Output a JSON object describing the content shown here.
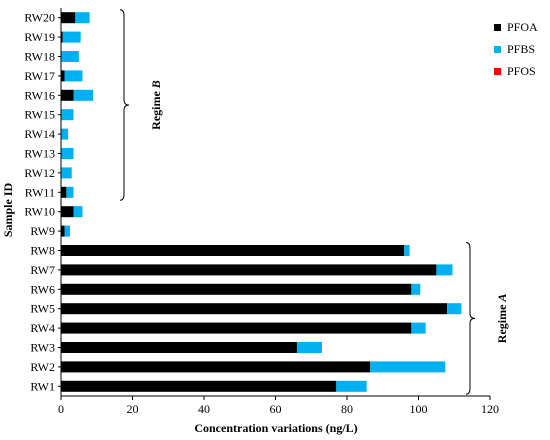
{
  "chart_data": {
    "type": "bar",
    "orientation": "horizontal",
    "stacked": true,
    "title": "",
    "xlabel": "Concentration variations (ng/L)",
    "ylabel": "Sample ID",
    "xlim": [
      0,
      120
    ],
    "x_ticks": [
      0,
      20,
      40,
      60,
      80,
      100,
      120
    ],
    "categories": [
      "RW1",
      "RW2",
      "RW3",
      "RW4",
      "RW5",
      "RW6",
      "RW7",
      "RW8",
      "RW9",
      "RW10",
      "RW11",
      "RW12",
      "RW13",
      "RW14",
      "RW15",
      "RW16",
      "RW17",
      "RW18",
      "RW19",
      "RW20"
    ],
    "series": [
      {
        "name": "PFOA",
        "color": "#000000",
        "values": [
          77,
          86.5,
          66,
          98,
          108,
          98,
          105,
          96,
          1,
          3.5,
          1.5,
          0,
          0,
          0,
          0,
          3.5,
          1,
          0,
          0.5,
          4
        ]
      },
      {
        "name": "PFBS",
        "color": "#00b0f0",
        "values": [
          8.5,
          21,
          7,
          4,
          4,
          2.5,
          4.5,
          1.5,
          1.5,
          2.5,
          2,
          3,
          3.5,
          2,
          3.5,
          5.5,
          5,
          5,
          5,
          4
        ]
      },
      {
        "name": "PFOS",
        "color": "#ff0000",
        "values": [
          0,
          0,
          0,
          0,
          0,
          0,
          0,
          0,
          0,
          0,
          0,
          0,
          0,
          0,
          0,
          0,
          0,
          0,
          0,
          0
        ]
      }
    ],
    "legend": {
      "placement": "top-right",
      "entries": [
        "PFOA",
        "PFBS",
        "PFOS"
      ]
    },
    "grid": false,
    "annotations": [
      {
        "text": "Regime A",
        "italic": "A",
        "range": [
          "RW1",
          "RW8"
        ]
      },
      {
        "text": "Regime B",
        "italic": "B",
        "range": [
          "RW11",
          "RW20"
        ]
      }
    ]
  }
}
